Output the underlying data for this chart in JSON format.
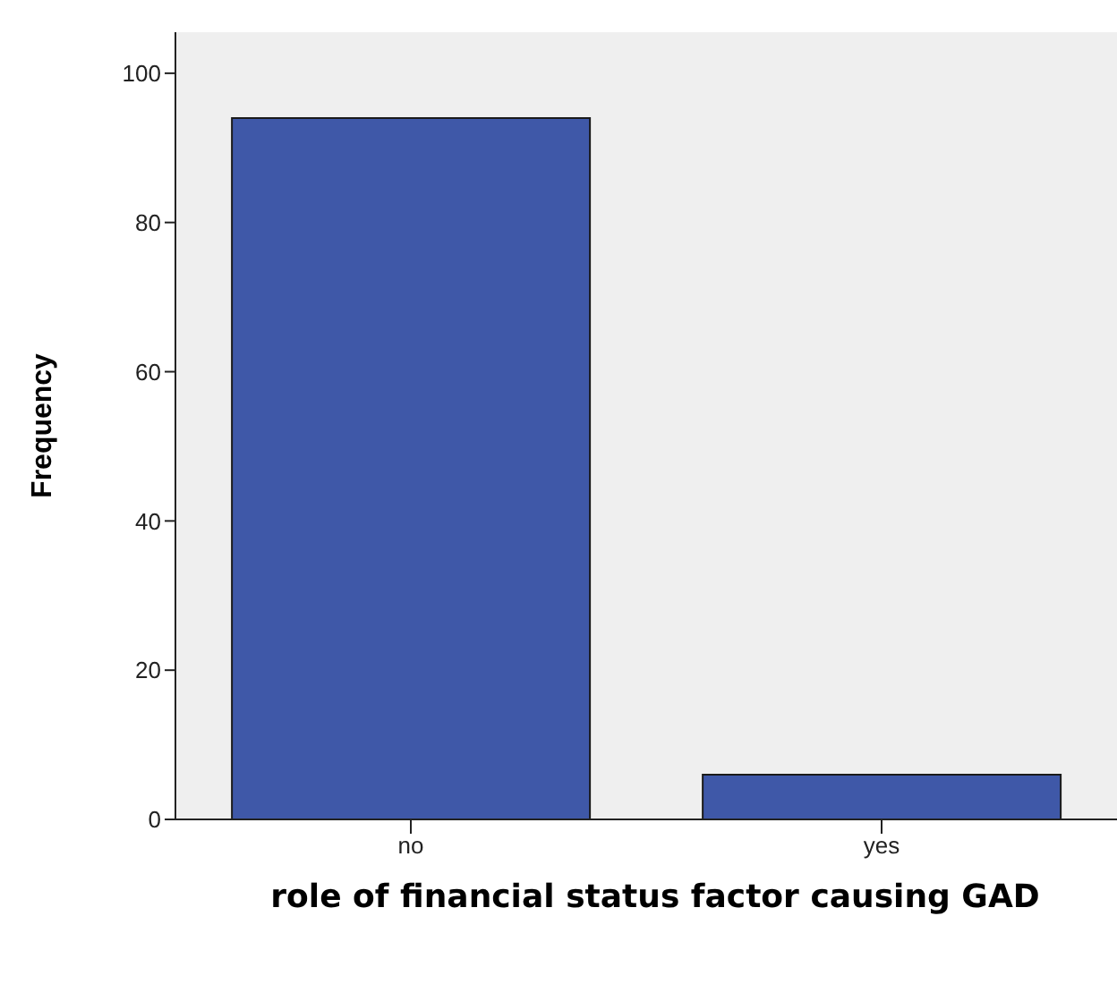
{
  "chart_data": {
    "type": "bar",
    "xlabel": "role of financial status factor causing GAD",
    "ylabel": "Frequency",
    "categories": [
      "no",
      "yes"
    ],
    "values": [
      94,
      6
    ],
    "color": "#3f58a8",
    "ylim": [
      0,
      105.5
    ],
    "yticks": [
      0,
      20,
      40,
      60,
      80,
      100
    ],
    "grid": false
  }
}
